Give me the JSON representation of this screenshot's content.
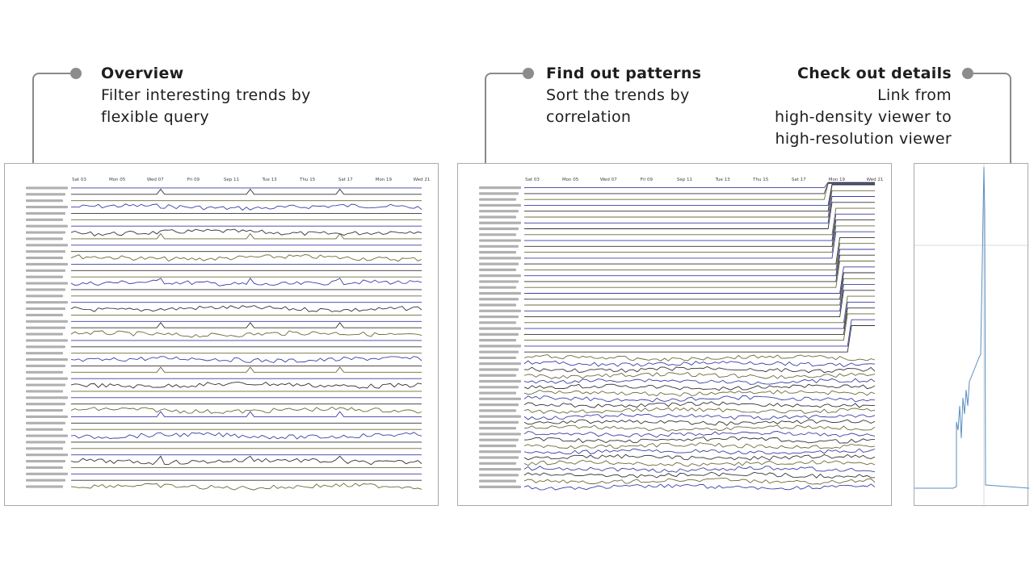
{
  "steps": [
    {
      "title": "Overview",
      "lines": [
        "Filter interesting trends by",
        "flexible query"
      ]
    },
    {
      "title": "Find out patterns",
      "lines": [
        "Sort the trends by",
        "correlation"
      ]
    },
    {
      "title": "Check out details",
      "lines": [
        "Link from",
        "high-density viewer to",
        "high-resolution viewer"
      ]
    }
  ],
  "panels": {
    "overview": {
      "date_ticks": [
        "Sat 03",
        "Mon 05",
        "Wed 07",
        "Fri 09",
        "Sep 11",
        "Tue 13",
        "Thu 15",
        "Sat 17",
        "Mon 19",
        "Wed 21"
      ],
      "trend_count": 48
    },
    "patterns": {
      "date_ticks": [
        "Sat 03",
        "Mon 05",
        "Wed 07",
        "Fri 09",
        "Sep 11",
        "Tue 13",
        "Thu 15",
        "Sat 17",
        "Mon 19",
        "Wed 21"
      ],
      "trend_count": 52
    },
    "detail": {}
  },
  "colors": {
    "callout": "#8a8a8a",
    "trend_blue": "#3a3fa6",
    "trend_dark": "#333333",
    "trend_olive": "#6b6b3a",
    "detail_line": "#5a8fc4"
  }
}
